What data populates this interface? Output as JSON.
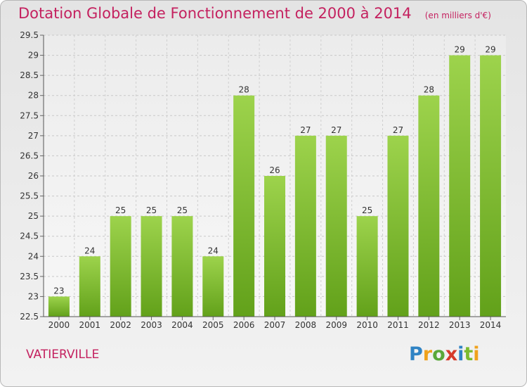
{
  "title": "Dotation Globale de Fonctionnement de 2000 à 2014",
  "unit": "(en milliers d'€)",
  "location": "VATIERVILLE",
  "logo": [
    "P",
    "r",
    "o",
    "x",
    "i",
    "t",
    "i"
  ],
  "logo_colors": [
    "#2f83c4",
    "#f0a21c",
    "#5aa83a",
    "#d63a2a",
    "#2f83c4",
    "#7bbb2e",
    "#f0a21c"
  ],
  "colors": {
    "accent": "#c4215f",
    "bar_light": "#9dd34c",
    "bar_dark": "#62a11a"
  },
  "chart_data": {
    "type": "bar",
    "title": "Dotation Globale de Fonctionnement de 2000 à 2014",
    "subtitle": "(en milliers d'€)",
    "categories": [
      "2000",
      "2001",
      "2002",
      "2003",
      "2004",
      "2005",
      "2006",
      "2007",
      "2008",
      "2009",
      "2010",
      "2011",
      "2012",
      "2013",
      "2014"
    ],
    "values": [
      23,
      24,
      25,
      25,
      25,
      24,
      28,
      26,
      27,
      27,
      25,
      27,
      28,
      29,
      29
    ],
    "labels": [
      "23",
      "24",
      "25",
      "25",
      "25",
      "24",
      "28",
      "26",
      "27",
      "27",
      "25",
      "27",
      "28",
      "29",
      "29"
    ],
    "yticks": [
      22.5,
      23,
      23.5,
      24,
      24.5,
      25,
      25.5,
      26,
      26.5,
      27,
      27.5,
      28,
      28.5,
      29,
      29.5
    ],
    "ylim": [
      22.5,
      29.5
    ],
    "xlabel": "",
    "ylabel": "",
    "grid": true,
    "legend": "none"
  }
}
